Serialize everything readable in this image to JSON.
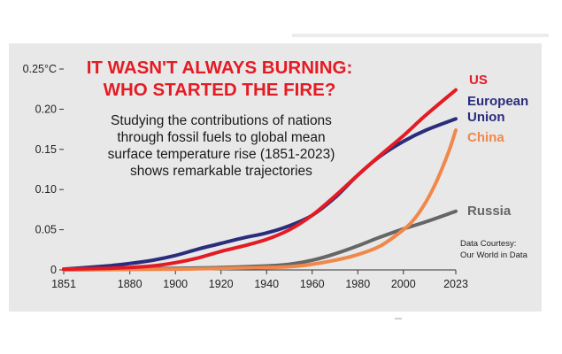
{
  "chart_data": {
    "type": "line",
    "title": [
      "IT WASN'T ALWAYS BURNING:",
      "WHO STARTED THE FIRE?"
    ],
    "subtitle": [
      "Studying the contributions of nations",
      "through fossil fuels to global mean",
      "surface temperature rise (1851-2023)",
      "shows remarkable trajectories"
    ],
    "source": [
      "Data Courtesy:",
      "Our World in Data"
    ],
    "xlim": [
      1851,
      2023
    ],
    "ylim": [
      0,
      0.25
    ],
    "x_ticks": [
      "1851",
      "1880",
      "1900",
      "1920",
      "1940",
      "1960",
      "1980",
      "2000",
      "2023"
    ],
    "y_ticks": [
      "0",
      "0.05",
      "0.10",
      "0.15",
      "0.20",
      "0.25°C"
    ],
    "series": [
      {
        "name": "US",
        "color": "#e51b24",
        "x": [
          1851,
          1870,
          1880,
          1890,
          1900,
          1910,
          1920,
          1930,
          1940,
          1950,
          1960,
          1970,
          1980,
          1990,
          2000,
          2010,
          2023
        ],
        "y": [
          0.001,
          0.002,
          0.003,
          0.005,
          0.009,
          0.015,
          0.023,
          0.03,
          0.038,
          0.05,
          0.068,
          0.092,
          0.118,
          0.143,
          0.167,
          0.193,
          0.224
        ]
      },
      {
        "name": "European Union",
        "color": "#2a2c7c",
        "x": [
          1851,
          1870,
          1880,
          1890,
          1900,
          1910,
          1920,
          1930,
          1940,
          1950,
          1960,
          1970,
          1980,
          1990,
          2000,
          2010,
          2023
        ],
        "y": [
          0.001,
          0.005,
          0.008,
          0.012,
          0.018,
          0.026,
          0.033,
          0.04,
          0.046,
          0.055,
          0.068,
          0.09,
          0.118,
          0.142,
          0.16,
          0.174,
          0.188
        ]
      },
      {
        "name": "China",
        "color": "#f2874a",
        "x": [
          1851,
          1900,
          1920,
          1940,
          1950,
          1960,
          1970,
          1980,
          1990,
          2000,
          2005,
          2010,
          2015,
          2020,
          2023
        ],
        "y": [
          0,
          0.001,
          0.002,
          0.003,
          0.004,
          0.007,
          0.012,
          0.019,
          0.03,
          0.05,
          0.064,
          0.085,
          0.113,
          0.148,
          0.174
        ]
      },
      {
        "name": "Russia",
        "color": "#666666",
        "x": [
          1851,
          1900,
          1920,
          1940,
          1950,
          1960,
          1970,
          1980,
          1990,
          2000,
          2010,
          2023
        ],
        "y": [
          0,
          0.002,
          0.003,
          0.005,
          0.007,
          0.012,
          0.02,
          0.03,
          0.041,
          0.051,
          0.06,
          0.073
        ]
      }
    ],
    "legend": "right end of lines",
    "grid": false
  }
}
